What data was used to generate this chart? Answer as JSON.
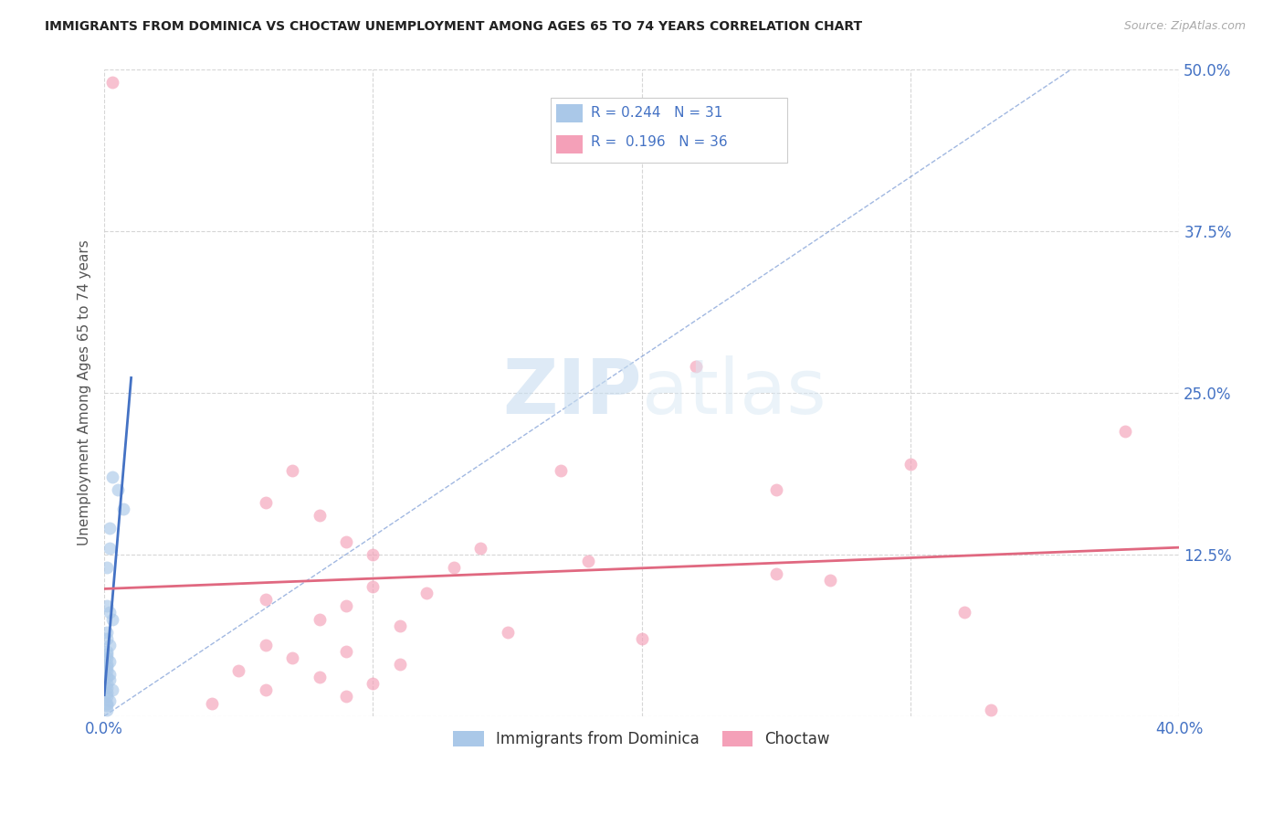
{
  "title": "IMMIGRANTS FROM DOMINICA VS CHOCTAW UNEMPLOYMENT AMONG AGES 65 TO 74 YEARS CORRELATION CHART",
  "source": "Source: ZipAtlas.com",
  "ylabel": "Unemployment Among Ages 65 to 74 years",
  "xlim": [
    0.0,
    0.4
  ],
  "ylim": [
    0.0,
    0.5
  ],
  "xticks": [
    0.0,
    0.1,
    0.2,
    0.3,
    0.4
  ],
  "xticklabels": [
    "0.0%",
    "",
    "",
    "",
    "40.0%"
  ],
  "yticks": [
    0.0,
    0.125,
    0.25,
    0.375,
    0.5
  ],
  "yticklabels": [
    "",
    "12.5%",
    "25.0%",
    "37.5%",
    "50.0%"
  ],
  "grid_color": "#cccccc",
  "background_color": "#ffffff",
  "watermark_zip": "ZIP",
  "watermark_atlas": "atlas",
  "dominica_color": "#aac8e8",
  "choctaw_color": "#f4a0b8",
  "dominica_line_color": "#4472c4",
  "choctaw_line_color": "#e06880",
  "scatter_alpha": 0.65,
  "scatter_size": 100,
  "dominica_x": [
    0.003,
    0.005,
    0.007,
    0.002,
    0.002,
    0.001,
    0.001,
    0.002,
    0.003,
    0.001,
    0.001,
    0.002,
    0.001,
    0.001,
    0.001,
    0.002,
    0.001,
    0.001,
    0.001,
    0.002,
    0.001,
    0.002,
    0.001,
    0.001,
    0.003,
    0.001,
    0.001,
    0.002,
    0.001,
    0.001,
    0.001
  ],
  "dominica_y": [
    0.185,
    0.175,
    0.16,
    0.145,
    0.13,
    0.115,
    0.085,
    0.08,
    0.075,
    0.065,
    0.06,
    0.055,
    0.05,
    0.048,
    0.045,
    0.042,
    0.04,
    0.038,
    0.035,
    0.032,
    0.03,
    0.028,
    0.025,
    0.022,
    0.02,
    0.018,
    0.015,
    0.012,
    0.01,
    0.008,
    0.005
  ],
  "choctaw_x": [
    0.003,
    0.38,
    0.22,
    0.17,
    0.3,
    0.07,
    0.25,
    0.06,
    0.08,
    0.09,
    0.14,
    0.1,
    0.18,
    0.13,
    0.25,
    0.27,
    0.1,
    0.12,
    0.06,
    0.09,
    0.32,
    0.08,
    0.11,
    0.15,
    0.2,
    0.06,
    0.09,
    0.07,
    0.11,
    0.05,
    0.08,
    0.1,
    0.06,
    0.09,
    0.04,
    0.33
  ],
  "choctaw_y": [
    0.49,
    0.22,
    0.27,
    0.19,
    0.195,
    0.19,
    0.175,
    0.165,
    0.155,
    0.135,
    0.13,
    0.125,
    0.12,
    0.115,
    0.11,
    0.105,
    0.1,
    0.095,
    0.09,
    0.085,
    0.08,
    0.075,
    0.07,
    0.065,
    0.06,
    0.055,
    0.05,
    0.045,
    0.04,
    0.035,
    0.03,
    0.025,
    0.02,
    0.015,
    0.01,
    0.005
  ],
  "legend_r1": "0.244",
  "legend_n1": "31",
  "legend_r2": "0.196",
  "legend_n2": "36"
}
